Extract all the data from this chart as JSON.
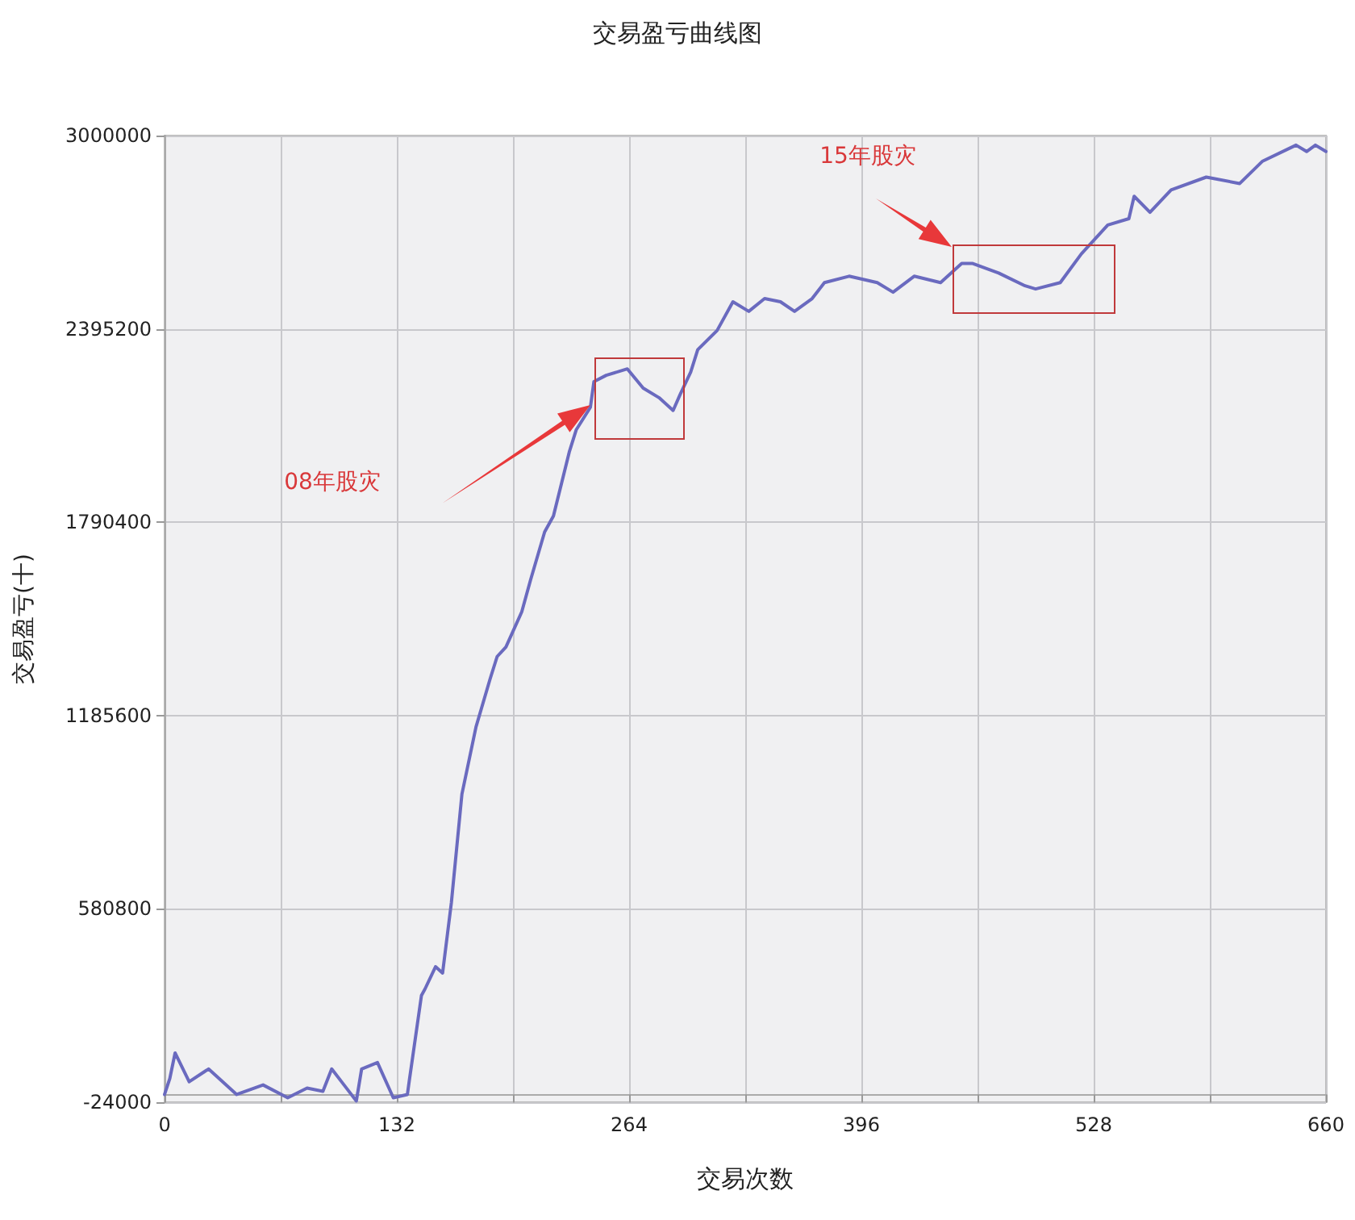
{
  "chart_data": {
    "type": "line",
    "title": "交易盈亏曲线图",
    "xlabel": "交易次数",
    "ylabel": "交易盈亏(十)",
    "x": [
      0,
      3,
      6,
      14,
      25,
      41,
      56,
      70,
      81,
      90,
      95,
      102,
      109,
      112,
      121,
      130,
      138,
      139,
      146,
      148,
      154,
      158,
      163,
      169,
      177,
      185,
      189,
      194,
      203,
      208,
      216,
      221,
      230,
      234,
      242,
      244,
      251,
      263,
      272,
      281,
      289,
      293,
      299,
      303,
      314,
      323,
      332,
      341,
      350,
      358,
      368,
      375,
      389,
      405,
      414,
      426,
      441,
      453,
      459,
      474,
      489,
      495,
      509,
      521,
      536,
      548,
      551,
      560,
      572,
      592,
      611,
      624,
      643,
      649,
      654,
      660
    ],
    "series": [
      {
        "color": "#6a6abf",
        "values": [
          0,
          50000,
          130000,
          40000,
          80000,
          0,
          30000,
          -10000,
          20000,
          10000,
          80000,
          30000,
          -20000,
          80000,
          100000,
          -10000,
          0,
          40000,
          310000,
          330000,
          400000,
          380000,
          600000,
          940000,
          1150000,
          1300000,
          1370000,
          1400000,
          1510000,
          1610000,
          1760000,
          1810000,
          2010000,
          2080000,
          2150000,
          2230000,
          2250000,
          2270000,
          2210000,
          2180000,
          2140000,
          2190000,
          2260000,
          2330000,
          2390000,
          2480000,
          2450000,
          2490000,
          2480000,
          2450000,
          2490000,
          2540000,
          2560000,
          2540000,
          2510000,
          2560000,
          2540000,
          2600000,
          2600000,
          2570000,
          2530000,
          2520000,
          2540000,
          2630000,
          2720000,
          2740000,
          2810000,
          2760000,
          2830000,
          2870000,
          2850000,
          2920000,
          2970000,
          2950000,
          2970000,
          2950000
        ]
      }
    ],
    "xlim": [
      0,
      660
    ],
    "xticks": [
      0,
      {
        "value": 66,
        "label": null
      },
      132,
      {
        "value": 198,
        "label": null
      },
      264,
      {
        "value": 330,
        "label": null
      },
      396,
      {
        "value": 462,
        "label": null
      },
      528,
      {
        "value": 594,
        "label": null
      },
      660
    ],
    "ylim": [
      -24000,
      3000000
    ],
    "yticks": [
      -24000,
      580800,
      1185600,
      1790400,
      2395200,
      3000000
    ],
    "grid": true,
    "marker": "none",
    "line_style": "solid",
    "annotations": [
      "08年股灾",
      "15年股灾"
    ]
  }
}
